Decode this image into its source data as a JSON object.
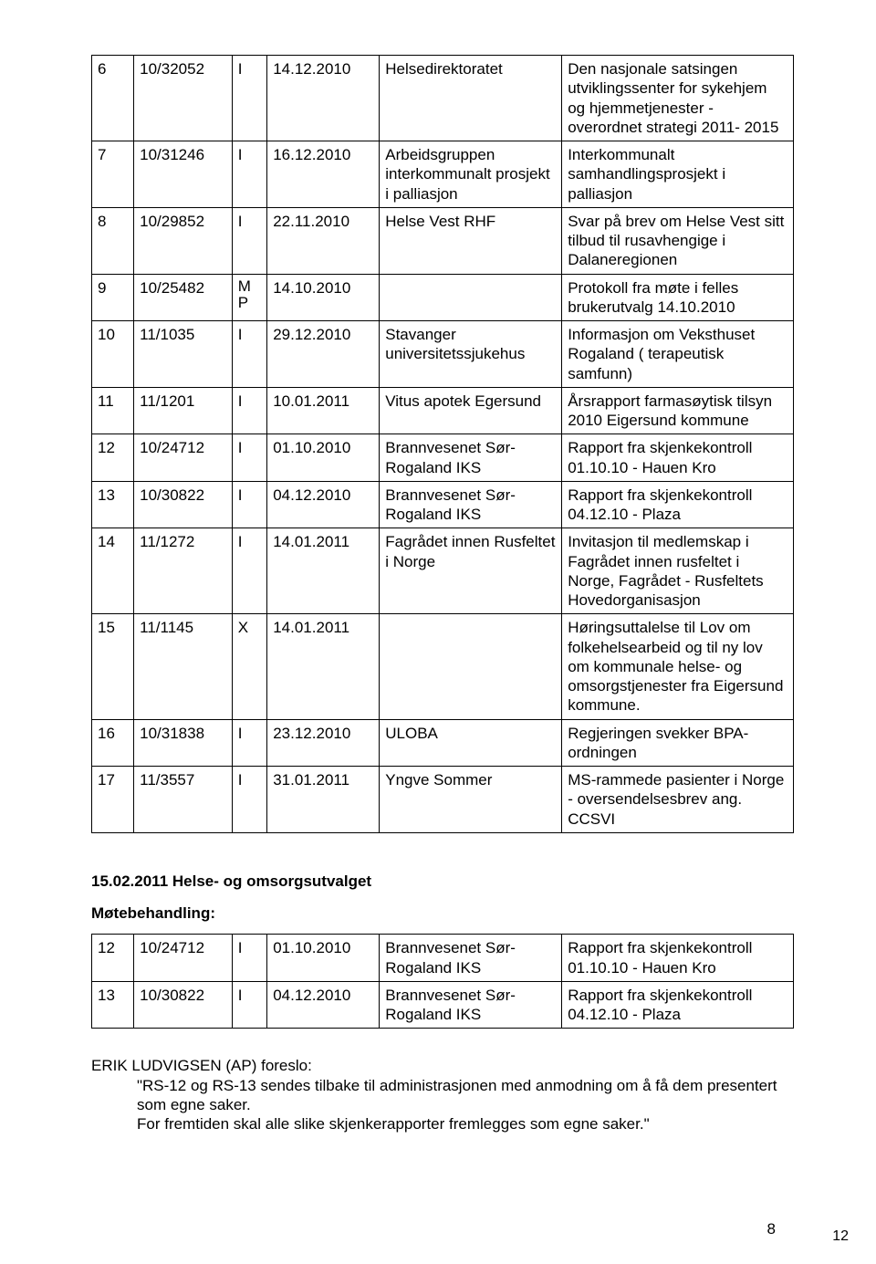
{
  "main_table": {
    "rows": [
      {
        "n": "6",
        "ref": "10/32052",
        "code": "I",
        "date": "14.12.2010",
        "from": "Helsedirektoratet",
        "desc": "Den nasjonale satsingen utviklingssenter for sykehjem og hjemmetjenester - overordnet strategi 2011- 2015"
      },
      {
        "n": "7",
        "ref": "10/31246",
        "code": "I",
        "date": "16.12.2010",
        "from": "Arbeidsgruppen interkommunalt prosjekt i palliasjon",
        "desc": "Interkommunalt samhandlingsprosjekt i palliasjon"
      },
      {
        "n": "8",
        "ref": "10/29852",
        "code": "I",
        "date": "22.11.2010",
        "from": "Helse Vest RHF",
        "desc": "Svar på brev om Helse Vest sitt tilbud til rusavhengige i Dalaneregionen"
      },
      {
        "n": "9",
        "ref": "10/25482",
        "code": "M P",
        "date": "14.10.2010",
        "from": "",
        "desc": "Protokoll fra møte i felles brukerutvalg 14.10.2010"
      },
      {
        "n": "10",
        "ref": "11/1035",
        "code": "I",
        "date": "29.12.2010",
        "from": "Stavanger universitetssjukehus",
        "desc": "Informasjon om Veksthuset Rogaland ( terapeutisk samfunn)"
      },
      {
        "n": "11",
        "ref": "11/1201",
        "code": "I",
        "date": "10.01.2011",
        "from": "Vitus apotek Egersund",
        "desc": "Årsrapport farmasøytisk tilsyn 2010 Eigersund kommune"
      },
      {
        "n": "12",
        "ref": "10/24712",
        "code": "I",
        "date": "01.10.2010",
        "from": "Brannvesenet Sør- Rogaland IKS",
        "desc": "Rapport fra skjenkekontroll 01.10.10 - Hauen Kro"
      },
      {
        "n": "13",
        "ref": "10/30822",
        "code": "I",
        "date": "04.12.2010",
        "from": "Brannvesenet Sør- Rogaland IKS",
        "desc": "Rapport fra skjenkekontroll 04.12.10 - Plaza"
      },
      {
        "n": "14",
        "ref": "11/1272",
        "code": "I",
        "date": "14.01.2011",
        "from": "Fagrådet innen Rusfeltet i Norge",
        "desc": "Invitasjon til medlemskap i Fagrådet innen rusfeltet i Norge, Fagrådet - Rusfeltets Hovedorganisasjon"
      },
      {
        "n": "15",
        "ref": "11/1145",
        "code": "X",
        "date": "14.01.2011",
        "from": "",
        "desc": "Høringsuttalelse til Lov om folkehelsearbeid og til  ny lov om kommunale helse- og omsorgstjenester fra Eigersund kommune."
      },
      {
        "n": "16",
        "ref": "10/31838",
        "code": "I",
        "date": "23.12.2010",
        "from": "ULOBA",
        "desc": "Regjeringen svekker BPA- ordningen"
      },
      {
        "n": "17",
        "ref": "11/3557",
        "code": "I",
        "date": "31.01.2011",
        "from": "Yngve Sommer",
        "desc": "MS-rammede pasienter i Norge - oversendelsesbrev ang. CCSVI"
      }
    ]
  },
  "section": {
    "heading": "15.02.2011 Helse- og omsorgsutvalget",
    "sub": "Møtebehandling:"
  },
  "sub_table": {
    "rows": [
      {
        "n": "12",
        "ref": "10/24712",
        "code": "I",
        "date": "01.10.2010",
        "from": "Brannvesenet Sør- Rogaland IKS",
        "desc": "Rapport fra skjenkekontroll 01.10.10 - Hauen Kro"
      },
      {
        "n": "13",
        "ref": "10/30822",
        "code": "I",
        "date": "04.12.2010",
        "from": "Brannvesenet Sør- Rogaland IKS",
        "desc": "Rapport fra skjenkekontroll 04.12.10 - Plaza"
      }
    ]
  },
  "proposal": {
    "lead": "ERIK LUDVIGSEN (AP) foreslo:",
    "line1": "\"RS-12 og RS-13 sendes tilbake til administrasjonen med anmodning om å få dem presentert som egne saker.",
    "line2": "For fremtiden skal alle slike skjenkerapporter fremlegges som egne saker.\""
  },
  "page_numbers": {
    "inner": "8",
    "outer": "12"
  },
  "mp": {
    "m": "M",
    "p": "P"
  }
}
